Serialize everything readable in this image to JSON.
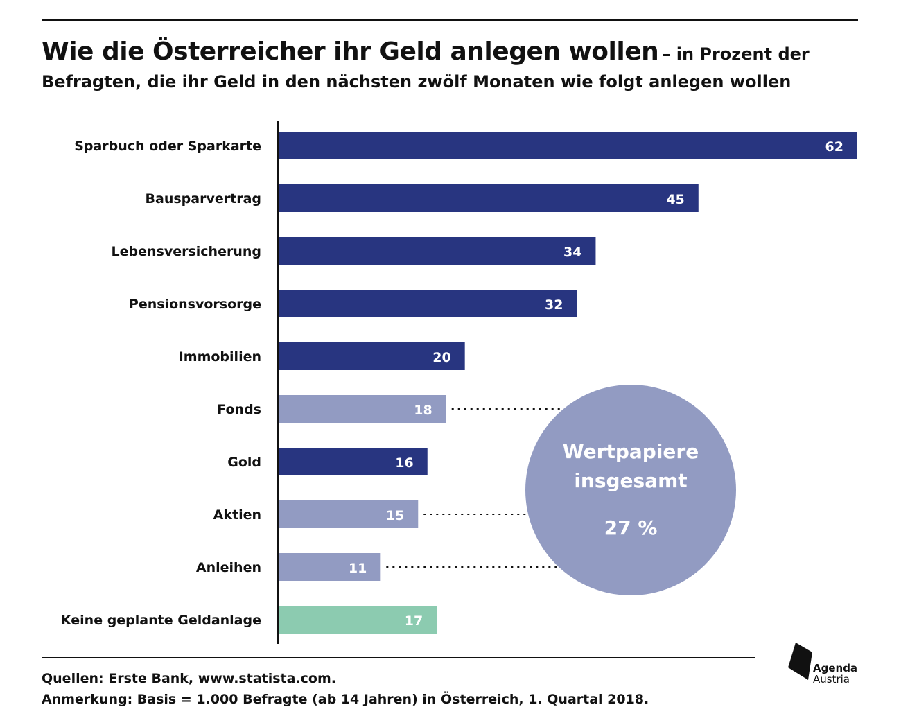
{
  "title": {
    "main": "Wie die Österreicher ihr Geld anlegen wollen",
    "sub_part1": "– in Prozent der",
    "sub_part2": "Befragten, die ihr Geld in den nächsten zwölf Monaten wie folgt anlegen wollen"
  },
  "chart_data": {
    "type": "bar",
    "orientation": "horizontal",
    "categories": [
      "Sparbuch oder Sparkarte",
      "Bausparvertrag",
      "Lebensversicherung",
      "Pensionsvorsorge",
      "Immobilien",
      "Fonds",
      "Gold",
      "Aktien",
      "Anleihen",
      "Keine geplante Geldanlage"
    ],
    "values": [
      62,
      45,
      34,
      32,
      20,
      18,
      16,
      15,
      11,
      17
    ],
    "bar_groups": [
      "standard",
      "standard",
      "standard",
      "standard",
      "standard",
      "securities",
      "standard",
      "securities",
      "securities",
      "none"
    ],
    "colors": {
      "standard": "#283580",
      "securities": "#929bc2",
      "none": "#8ccbb0"
    },
    "xlim": [
      0,
      62
    ],
    "grid": false,
    "annotation": {
      "label_line1": "Wertpapiere",
      "label_line2": "insgesamt",
      "value": "27 %",
      "color": "#929bc2",
      "links_to": [
        "Fonds",
        "Aktien",
        "Anleihen"
      ]
    }
  },
  "footer": {
    "sources": "Quellen: Erste Bank, www.statista.com.",
    "note": "Anmerkung: Basis = 1.000 Befragte (ab 14 Jahren) in Österreich, 1. Quartal 2018."
  },
  "logo": {
    "line1": "Agenda",
    "line2": "Austria",
    "icon": "agenda-austria-logo-icon"
  }
}
